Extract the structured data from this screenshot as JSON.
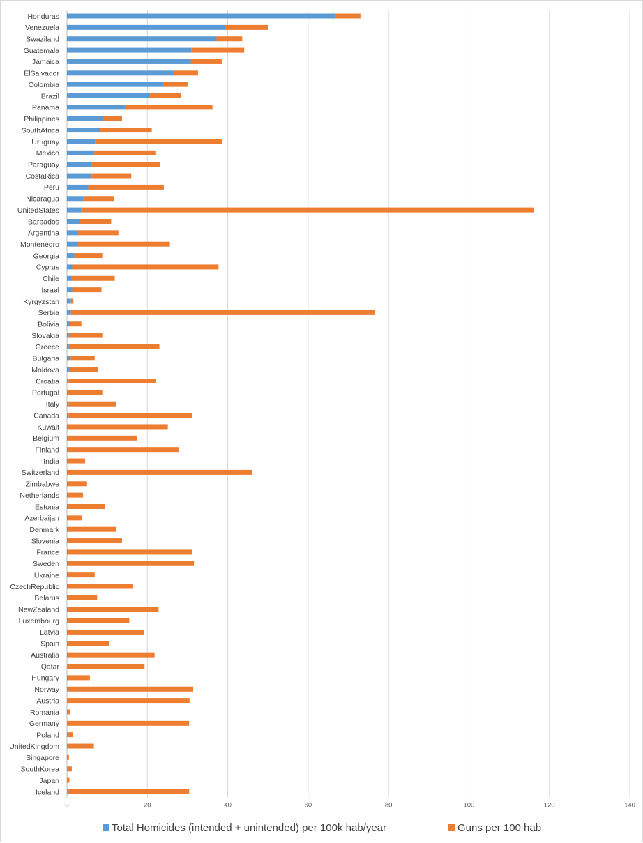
{
  "chart_data": {
    "type": "bar",
    "orientation": "horizontal",
    "stacked": true,
    "categories": [
      "Honduras",
      "Venezuela",
      "Swaziland",
      "Guatemala",
      "Jamaica",
      "ElSalvador",
      "Colombia",
      "Brazil",
      "Panama",
      "Philippines",
      "SouthAfrica",
      "Uruguay",
      "Mexico",
      "Paraguay",
      "CostaRica",
      "Peru",
      "Nicaragua",
      "UnitedStates",
      "Barbados",
      "Argentina",
      "Montenegro",
      "Georgia",
      "Cyprus",
      "Chile",
      "Israel",
      "Kyrgyzstan",
      "Serbia",
      "Bolivia",
      "Slovakia",
      "Greece",
      "Bulgaria",
      "Moldova",
      "Croatia",
      "Portugal",
      "Italy",
      "Canada",
      "Kuwait",
      "Belgium",
      "Finland",
      "India",
      "Switzerland",
      "Zimbabwe",
      "Netherlands",
      "Estonia",
      "Azerbaijan",
      "Denmark",
      "Slovenia",
      "France",
      "Sweden",
      "Ukraine",
      "CzechRepublic",
      "Belarus",
      "NewZealand",
      "Luxembourg",
      "Latvia",
      "Spain",
      "Australia",
      "Qatar",
      "Hungary",
      "Norway",
      "Austria",
      "Romania",
      "Germany",
      "Poland",
      "UnitedKingdom",
      "Singapore",
      "SouthKorea",
      "Japan",
      "Iceland"
    ],
    "series": [
      {
        "name": "Total Homicides (intended + unintended)  per 100k hab/year",
        "color": "#5b9bd5",
        "values": [
          66.8,
          39.3,
          37.2,
          31.0,
          30.8,
          26.6,
          24.0,
          20.3,
          14.5,
          9.0,
          8.3,
          7.0,
          6.8,
          6.2,
          6.1,
          5.3,
          4.0,
          3.6,
          3.2,
          2.6,
          2.5,
          1.8,
          1.3,
          1.2,
          1.3,
          1.0,
          1.0,
          0.8,
          0.5,
          0.5,
          0.9,
          0.6,
          0.4,
          0.3,
          0.4,
          0.4,
          0.3,
          0.2,
          0.3,
          0.3,
          0.3,
          0.2,
          0.2,
          0.3,
          0.2,
          0.2,
          0.2,
          0.2,
          0.2,
          0.3,
          0.2,
          0.2,
          0.2,
          0.2,
          0.3,
          0.2,
          0.2,
          0.1,
          0.2,
          0.1,
          0.1,
          0.1,
          0.1,
          0.1,
          0.1,
          0.0,
          0.1,
          0.0,
          0.1
        ]
      },
      {
        "name": "Guns per 100 hab",
        "color": "#ed7d31",
        "values": [
          6.2,
          10.7,
          6.4,
          13.1,
          7.7,
          6.0,
          6.0,
          8.0,
          21.7,
          4.7,
          12.8,
          31.6,
          15.2,
          17.0,
          9.9,
          18.8,
          7.7,
          112.6,
          7.8,
          10.2,
          23.1,
          7.0,
          36.4,
          10.7,
          7.3,
          0.6,
          75.6,
          2.8,
          8.3,
          22.5,
          6.0,
          7.1,
          21.8,
          8.5,
          11.9,
          30.8,
          24.8,
          17.3,
          27.5,
          4.2,
          45.7,
          4.8,
          3.8,
          9.1,
          3.5,
          12.0,
          13.5,
          31.0,
          31.4,
          6.6,
          16.1,
          7.3,
          22.6,
          15.3,
          18.9,
          10.4,
          21.6,
          19.2,
          5.5,
          31.3,
          30.4,
          0.7,
          30.3,
          1.3,
          6.6,
          0.5,
          1.1,
          0.6,
          30.3
        ]
      }
    ],
    "xlim": [
      0,
      140
    ],
    "xticks": [
      "0",
      "20",
      "40",
      "60",
      "80",
      "100",
      "120",
      "140"
    ],
    "grid": true,
    "legend_position": "bottom",
    "title": "",
    "xlabel": "",
    "ylabel": ""
  }
}
